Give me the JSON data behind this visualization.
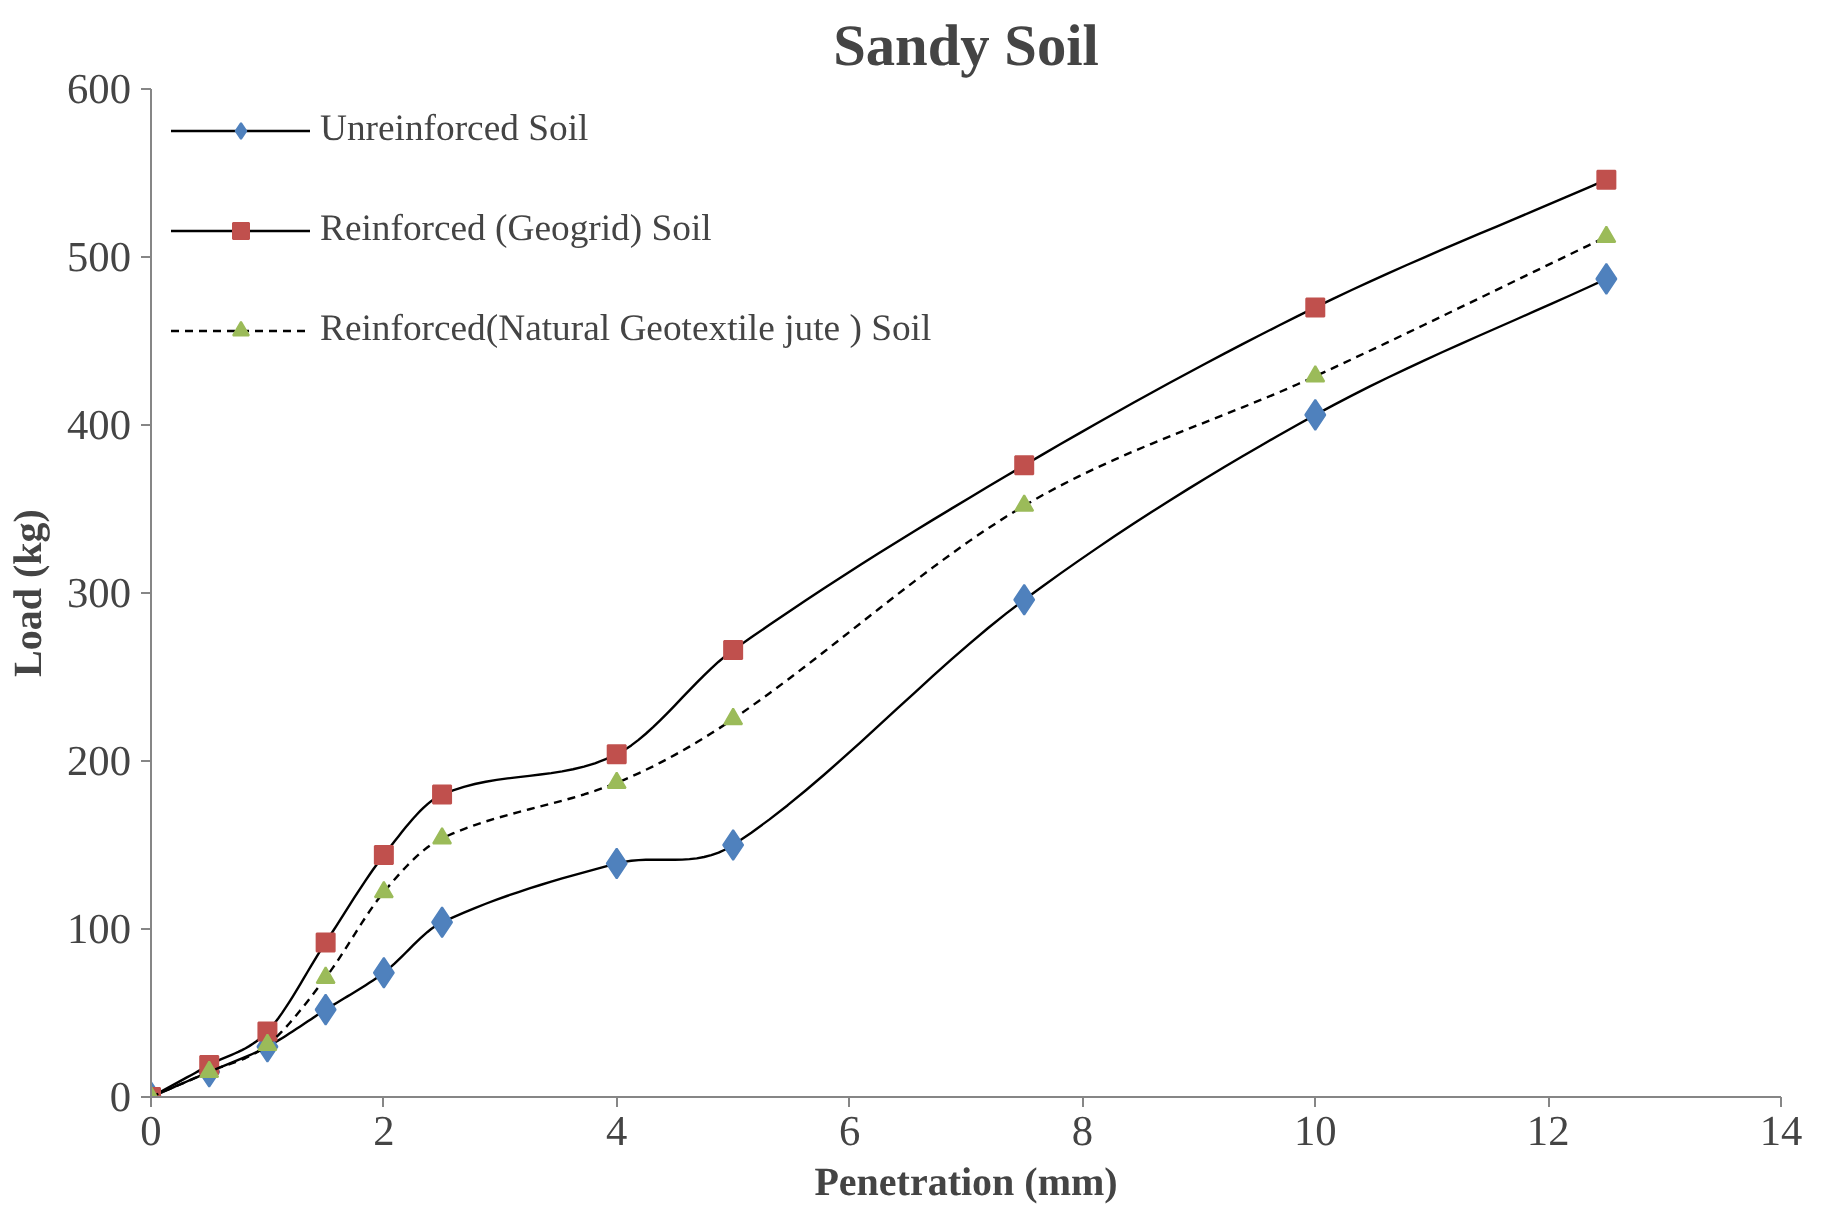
{
  "chart_data": {
    "type": "line",
    "title": "Sandy Soil",
    "xlabel": "Penetration (mm)",
    "ylabel": "Load (kg)",
    "x": [
      0,
      0.5,
      1,
      1.5,
      2,
      2.5,
      4,
      5,
      7.5,
      10,
      12.5
    ],
    "series": [
      {
        "name": "Unreinforced Soil",
        "color": "#4f81bd",
        "marker": "diamond",
        "line_style": "solid",
        "values": [
          0,
          15,
          30,
          52,
          74,
          104,
          139,
          150,
          296,
          406,
          487
        ]
      },
      {
        "name": "Reinforced (Geogrid) Soil",
        "color": "#c0504d",
        "marker": "square",
        "line_style": "solid",
        "values": [
          0,
          19,
          39,
          92,
          144,
          180,
          204,
          266,
          376,
          470,
          546
        ]
      },
      {
        "name": "Reinforced(Natural Geotextile jute ) Soil",
        "color": "#9bbb59",
        "marker": "triangle",
        "line_style": "dashed",
        "values": [
          0,
          15,
          31,
          71,
          122,
          154,
          187,
          225,
          352,
          429,
          512
        ]
      }
    ],
    "xlim": [
      0,
      14
    ],
    "xticks": [
      0,
      2,
      4,
      6,
      8,
      10,
      12,
      14
    ],
    "ylim": [
      0,
      600
    ],
    "yticks": [
      0,
      100,
      200,
      300,
      400,
      500,
      600
    ],
    "grid": false,
    "legend": "top left"
  }
}
